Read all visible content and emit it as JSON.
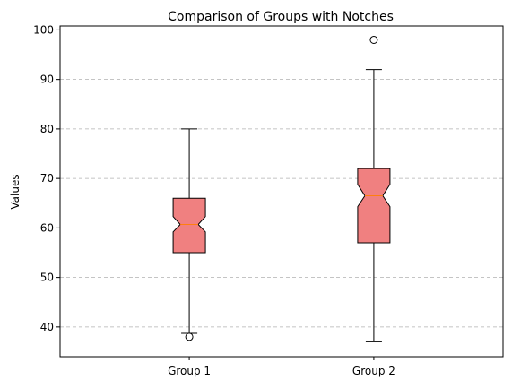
{
  "chart_data": {
    "type": "boxplot",
    "title": "Comparison of Groups with Notches",
    "xlabel": "",
    "ylabel": "Values",
    "ylim": [
      34,
      100.8
    ],
    "yticks": [
      40,
      50,
      60,
      70,
      80,
      90,
      100
    ],
    "grid": "horizontal-dashed",
    "notched": true,
    "box_color": "#f08080",
    "median_color": "#ff7f0e",
    "groups": [
      {
        "label": "Group 1",
        "whisker_low": 38.7,
        "q1": 55.0,
        "notch_low": 59.2,
        "median": 60.7,
        "notch_high": 62.3,
        "q3": 66.0,
        "whisker_high": 80.0,
        "outliers": [
          38.0
        ]
      },
      {
        "label": "Group 2",
        "whisker_low": 37.0,
        "q1": 57.0,
        "notch_low": 64.3,
        "median": 66.5,
        "notch_high": 68.8,
        "q3": 72.0,
        "whisker_high": 92.0,
        "outliers": [
          98.0
        ]
      }
    ]
  }
}
